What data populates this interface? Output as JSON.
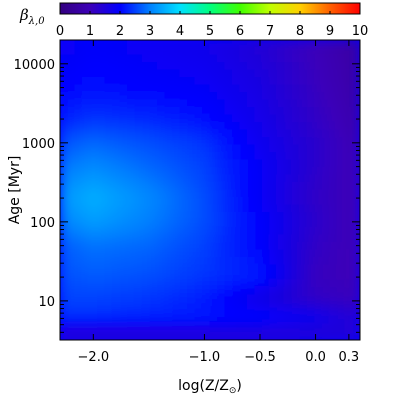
{
  "chart_data": {
    "type": "heatmap",
    "colorbar": {
      "title": "β",
      "title_subscript": "λ,0",
      "min": 0,
      "max": 10,
      "ticks": [
        0,
        1,
        2,
        3,
        4,
        5,
        6,
        7,
        8,
        9,
        10
      ],
      "colormap": [
        "#33007f",
        "#3c00b8",
        "#0000ff",
        "#0080ff",
        "#00e0ff",
        "#00ff80",
        "#40ff00",
        "#c0ff00",
        "#ffd000",
        "#ff6000",
        "#ff0000"
      ]
    },
    "x_axis": {
      "label_prefix": "log(Z/Z",
      "label_sub": "⊙",
      "label_suffix": ")",
      "ticks": [
        {
          "value": -2.0,
          "label": "−2.0"
        },
        {
          "value": -1.0,
          "label": "−1.0"
        },
        {
          "value": -0.5,
          "label": "−0.5"
        },
        {
          "value": 0.0,
          "label": "0.0"
        },
        {
          "value": 0.3,
          "label": "0.3"
        }
      ],
      "range": [
        -2.3,
        0.4
      ]
    },
    "y_axis": {
      "label_prefix": "Age ",
      "label_unit": "Myr",
      "scale": "log",
      "ticks": [
        {
          "value": 10,
          "label": "10"
        },
        {
          "value": 100,
          "label": "100"
        },
        {
          "value": 1000,
          "label": "1000"
        },
        {
          "value": 10000,
          "label": "10000"
        }
      ],
      "range": [
        3.2,
        20000
      ]
    },
    "x_nodes": [
      -2.3,
      -2.0,
      -1.5,
      -1.0,
      -0.5,
      0.0,
      0.3,
      0.4
    ],
    "y_nodes": [
      3.2,
      5,
      7,
      10,
      20,
      50,
      100,
      200,
      500,
      1000,
      2000,
      5000,
      20000
    ],
    "values": [
      [
        1.1,
        1.1,
        1.1,
        1.1,
        1.2,
        1.3,
        1.4,
        1.4
      ],
      [
        2.0,
        2.0,
        2.0,
        2.0,
        1.9,
        1.7,
        1.5,
        1.5
      ],
      [
        2.4,
        2.4,
        2.3,
        2.2,
        2.0,
        1.7,
        1.4,
        1.3
      ],
      [
        2.5,
        2.5,
        2.4,
        2.2,
        1.6,
        1.2,
        1.1,
        1.0
      ],
      [
        2.6,
        2.7,
        2.6,
        2.4,
        2.2,
        1.1,
        1.0,
        1.0
      ],
      [
        2.7,
        2.9,
        2.8,
        2.5,
        2.0,
        1.2,
        1.0,
        1.0
      ],
      [
        3.0,
        3.3,
        3.0,
        2.6,
        2.0,
        1.3,
        1.0,
        1.0
      ],
      [
        3.2,
        3.5,
        3.1,
        2.6,
        1.9,
        1.2,
        1.0,
        1.0
      ],
      [
        2.9,
        3.1,
        2.8,
        2.5,
        1.9,
        1.3,
        1.0,
        0.9
      ],
      [
        2.6,
        2.8,
        2.6,
        2.4,
        1.8,
        1.3,
        1.0,
        0.8
      ],
      [
        2.2,
        2.4,
        2.3,
        2.1,
        1.7,
        1.2,
        0.9,
        0.7
      ],
      [
        2.0,
        2.1,
        2.0,
        1.9,
        1.6,
        1.1,
        0.8,
        0.6
      ],
      [
        1.8,
        1.9,
        1.8,
        1.7,
        1.4,
        1.0,
        0.7,
        0.5
      ]
    ]
  }
}
